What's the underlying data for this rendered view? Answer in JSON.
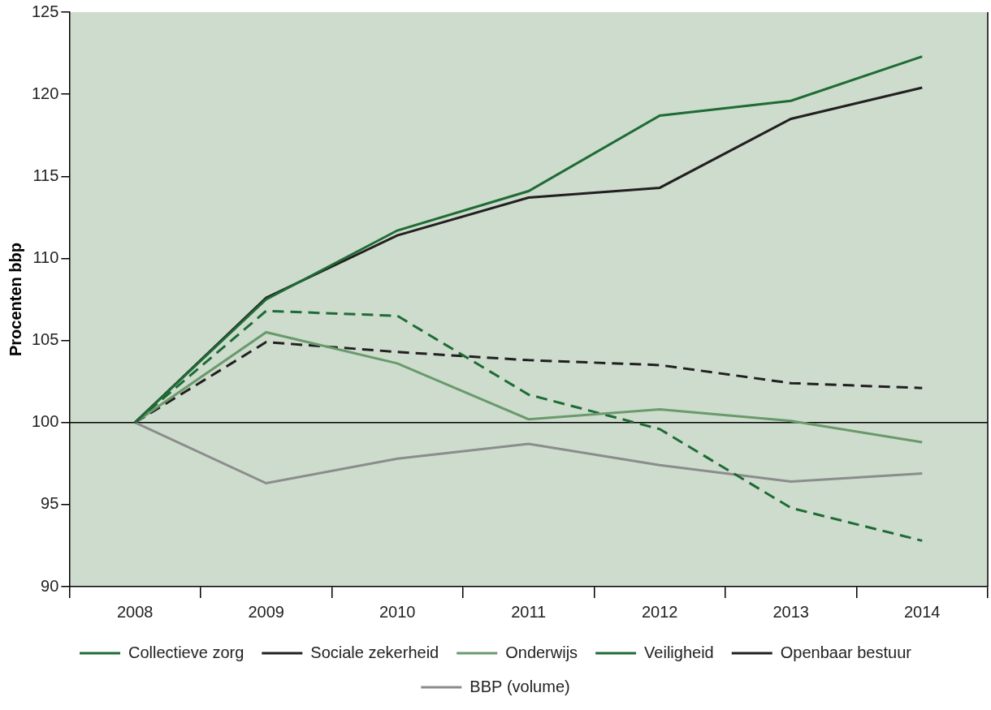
{
  "chart_data": {
    "type": "line",
    "y_label": "Procenten bbp",
    "categories": [
      "2008",
      "2009",
      "2010",
      "2011",
      "2012",
      "2013",
      "2014"
    ],
    "ylim": [
      90,
      125
    ],
    "yticks": [
      90,
      95,
      100,
      105,
      110,
      115,
      120,
      125
    ],
    "grid": false,
    "legend": "bottom",
    "series": [
      {
        "name": "Collectieve zorg",
        "color": "#1f6b35",
        "line_style": "solid",
        "values": [
          100,
          107.5,
          111.7,
          114.1,
          118.7,
          119.6,
          122.3
        ]
      },
      {
        "name": "Sociale zekerheid",
        "color": "#231f20",
        "line_style": "solid",
        "values": [
          100,
          107.6,
          111.4,
          113.7,
          114.3,
          118.5,
          120.4
        ]
      },
      {
        "name": "Onderwijs",
        "color": "#6a9a6c",
        "line_style": "solid",
        "values": [
          100,
          105.5,
          103.6,
          100.2,
          100.8,
          100.1,
          98.8
        ]
      },
      {
        "name": "Veiligheid",
        "color": "#1f6b35",
        "line_style": "dashed",
        "values": [
          100,
          106.8,
          106.5,
          101.7,
          99.6,
          94.8,
          92.8
        ]
      },
      {
        "name": "Openbaar bestuur",
        "color": "#231f20",
        "line_style": "dashed",
        "values": [
          100,
          104.9,
          104.3,
          103.8,
          103.5,
          102.4,
          102.1
        ]
      },
      {
        "name": "BBP (volume)",
        "color": "#8c8c8c",
        "line_style": "solid",
        "values": [
          100,
          96.3,
          97.8,
          98.7,
          97.4,
          96.4,
          96.9
        ]
      }
    ]
  }
}
